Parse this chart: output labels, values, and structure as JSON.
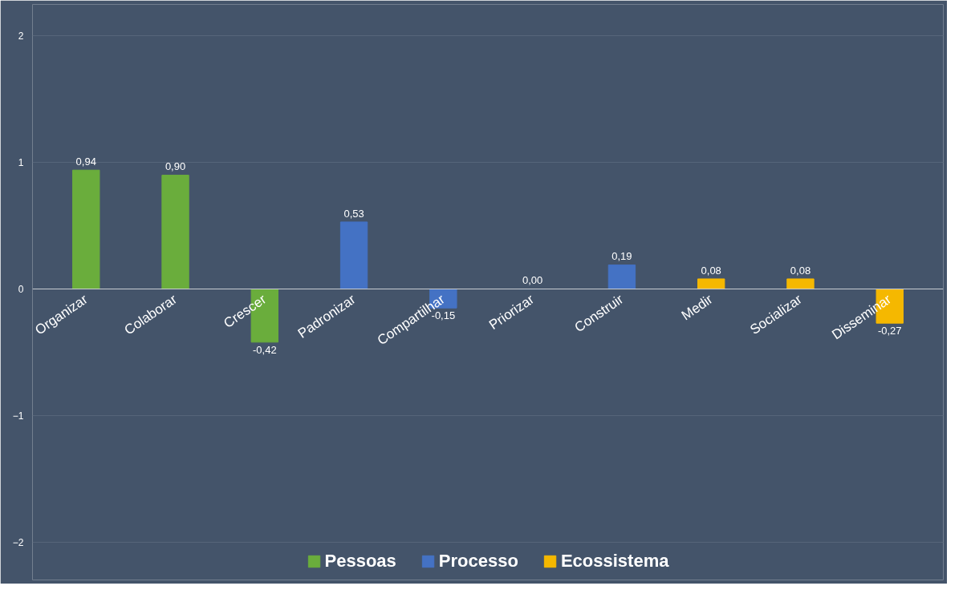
{
  "chart_data": {
    "type": "bar",
    "categories": [
      "Organizar",
      "Colaborar",
      "Crescer",
      "Padronizar",
      "Compartilhar",
      "Priorizar",
      "Construir",
      "Medir",
      "Socializar",
      "Disseminar"
    ],
    "series": [
      {
        "name": "Pessoas",
        "color": "#6aad3c",
        "values": [
          0.94,
          0.9,
          -0.42,
          null,
          null,
          null,
          null,
          null,
          null,
          null
        ],
        "value_labels": [
          "0,94",
          "0,90",
          "-0,42",
          null,
          null,
          null,
          null,
          null,
          null,
          null
        ]
      },
      {
        "name": "Processo",
        "color": "#4472c4",
        "values": [
          null,
          null,
          null,
          0.53,
          -0.15,
          0.0,
          0.19,
          null,
          null,
          null
        ],
        "value_labels": [
          null,
          null,
          null,
          "0,53",
          "-0,15",
          "0,00",
          "0,19",
          null,
          null,
          null
        ]
      },
      {
        "name": "Ecossistema",
        "color": "#f5b800",
        "values": [
          null,
          null,
          null,
          null,
          null,
          null,
          null,
          0.08,
          0.08,
          -0.27
        ],
        "value_labels": [
          null,
          null,
          null,
          null,
          null,
          null,
          null,
          "0,08",
          "0,08",
          "-0,27"
        ]
      }
    ],
    "ylim": [
      -2.3,
      2.25
    ],
    "yticks": [
      -2,
      -1,
      0,
      1,
      2
    ],
    "grid": "y",
    "legend": "bottom"
  }
}
